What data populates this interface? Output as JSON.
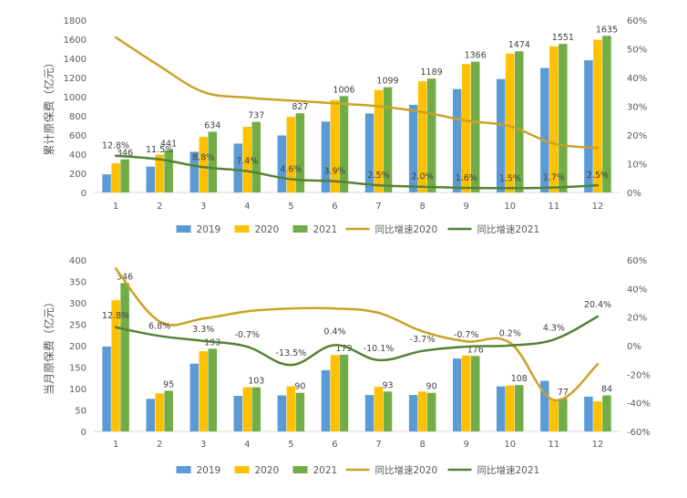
{
  "colors": {
    "s2019": "#5b9bd5",
    "s2020": "#ffc000",
    "s2021": "#70ad47",
    "g2020": "#c9a227",
    "g2021": "#548235",
    "axis": "#595959",
    "grid": "#d9d9d9"
  },
  "chart_data": [
    {
      "type": "bar",
      "ylabel": "累计原保费（亿元）",
      "categories": [
        "1",
        "2",
        "3",
        "4",
        "5",
        "6",
        "7",
        "8",
        "9",
        "10",
        "11",
        "12"
      ],
      "ylim": [
        0,
        1800
      ],
      "y_ticks": [
        "0",
        "200",
        "400",
        "600",
        "800",
        "1000",
        "1200",
        "1400",
        "1600",
        "1800"
      ],
      "y2lim": [
        0,
        60
      ],
      "y2_ticks": [
        "0%",
        "10%",
        "20%",
        "30%",
        "40%",
        "50%",
        "60%"
      ],
      "series": [
        {
          "name": "2019",
          "kind": "bar",
          "values": [
            190,
            270,
            425,
            510,
            595,
            740,
            825,
            915,
            1080,
            1185,
            1300,
            1380
          ]
        },
        {
          "name": "2020",
          "kind": "bar",
          "values": [
            305,
            395,
            580,
            685,
            790,
            965,
            1070,
            1160,
            1340,
            1450,
            1525,
            1595
          ]
        },
        {
          "name": "2021",
          "kind": "bar",
          "values": [
            346,
            441,
            634,
            737,
            827,
            1006,
            1099,
            1189,
            1366,
            1474,
            1551,
            1635
          ]
        },
        {
          "name": "同比增速2020",
          "kind": "line",
          "values": [
            54,
            44,
            35,
            33,
            32,
            31,
            30,
            28,
            25,
            23,
            17,
            15.5
          ]
        },
        {
          "name": "同比增速2021",
          "kind": "line",
          "values": [
            12.8,
            11.5,
            8.8,
            7.4,
            4.6,
            3.9,
            2.5,
            2.0,
            1.6,
            1.5,
            1.7,
            2.5
          ]
        }
      ],
      "bar_labels": [
        "346",
        "441",
        "634",
        "737",
        "827",
        "1006",
        "1099",
        "1189",
        "1366",
        "1474",
        "1551",
        "1635"
      ],
      "line_labels": [
        "12.8%",
        "11.5%",
        "8.8%",
        "7.4%",
        "4.6%",
        "3.9%",
        "2.5%",
        "2.0%",
        "1.6%",
        "1.5%",
        "1.7%",
        "2.5%"
      ],
      "legend": [
        "2019",
        "2020",
        "2021",
        "同比增速2020",
        "同比增速2021"
      ],
      "legend_position": "bottom"
    },
    {
      "type": "bar",
      "ylabel": "当月原保费（亿元）",
      "categories": [
        "1",
        "2",
        "3",
        "4",
        "5",
        "6",
        "7",
        "8",
        "9",
        "10",
        "11",
        "12"
      ],
      "ylim": [
        0,
        400
      ],
      "y_ticks": [
        "0",
        "50",
        "100",
        "150",
        "200",
        "250",
        "300",
        "350",
        "400"
      ],
      "y2lim": [
        -60,
        60
      ],
      "y2_ticks": [
        "-60%",
        "-40%",
        "-20%",
        "0%",
        "20%",
        "40%",
        "60%"
      ],
      "series": [
        {
          "name": "2019",
          "kind": "bar",
          "values": [
            198,
            76,
            158,
            83,
            84,
            143,
            85,
            85,
            170,
            105,
            118,
            81
          ]
        },
        {
          "name": "2020",
          "kind": "bar",
          "values": [
            306,
            89,
            187,
            103,
            105,
            178,
            104,
            93,
            177,
            107,
            74,
            70
          ]
        },
        {
          "name": "2021",
          "kind": "bar",
          "values": [
            346,
            95,
            193,
            103,
            90,
            179,
            93,
            90,
            176,
            108,
            77,
            84
          ]
        },
        {
          "name": "同比增速2020",
          "kind": "line",
          "values": [
            54,
            17,
            19,
            24,
            26,
            26,
            23,
            10,
            3,
            2,
            -38,
            -13
          ]
        },
        {
          "name": "同比增速2021",
          "kind": "line",
          "values": [
            12.8,
            6.8,
            3.3,
            -0.7,
            -13.5,
            0.4,
            -10.1,
            -3.7,
            -0.7,
            0.2,
            4.3,
            20.4
          ]
        }
      ],
      "bar_labels": [
        "346",
        "95",
        "193",
        "103",
        "90",
        "179",
        "93",
        "90",
        "176",
        "108",
        "77",
        "84"
      ],
      "line_labels": [
        "12.8%",
        "6.8%",
        "3.3%",
        "-0.7%",
        "-13.5%",
        "0.4%",
        "-10.1%",
        "-3.7%",
        "-0.7%",
        "0.2%",
        "4.3%",
        "20.4%"
      ],
      "legend": [
        "2019",
        "2020",
        "2021",
        "同比增速2020",
        "同比增速2021"
      ],
      "legend_position": "bottom"
    }
  ]
}
